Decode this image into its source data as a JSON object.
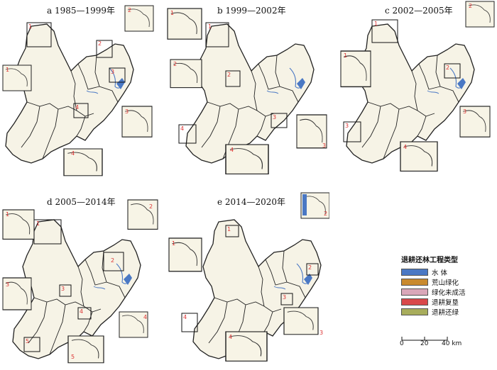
{
  "panels": [
    {
      "id": "a",
      "title": "a  1985—1999年",
      "insets": [
        "1",
        "2",
        "3",
        "4"
      ],
      "box_labels": [
        "1",
        "2",
        "3",
        "4"
      ]
    },
    {
      "id": "b",
      "title": "b  1999—2002年",
      "insets": [
        "1",
        "2",
        "3",
        "4"
      ],
      "box_labels": [
        "1",
        "2",
        "3",
        "4"
      ]
    },
    {
      "id": "c",
      "title": "c  2002—2005年",
      "insets": [
        "1",
        "2",
        "3",
        "4"
      ],
      "box_labels": [
        "1",
        "2",
        "3",
        "4"
      ]
    },
    {
      "id": "d",
      "title": "d  2005—2014年",
      "insets": [
        "1",
        "2",
        "3",
        "4",
        "5"
      ],
      "box_labels": [
        "1",
        "2",
        "3",
        "4",
        "5"
      ]
    },
    {
      "id": "e",
      "title": "e  2014—2020年",
      "insets": [
        "1",
        "2",
        "3",
        "4"
      ],
      "box_labels": [
        "1",
        "2",
        "3",
        "4"
      ]
    }
  ],
  "legend": {
    "title": "退耕还林工程类型",
    "items": [
      {
        "label": "水 体",
        "color": "#4a78c4"
      },
      {
        "label": "荒山绿化",
        "color": "#c98a2e"
      },
      {
        "label": "绿化未成活",
        "color": "#d9a7b9"
      },
      {
        "label": "退耕复垦",
        "color": "#d9484a"
      },
      {
        "label": "退耕还绿",
        "color": "#a8ad5c"
      }
    ]
  },
  "scale": {
    "ticks": [
      "0",
      "20",
      "40 km"
    ]
  }
}
